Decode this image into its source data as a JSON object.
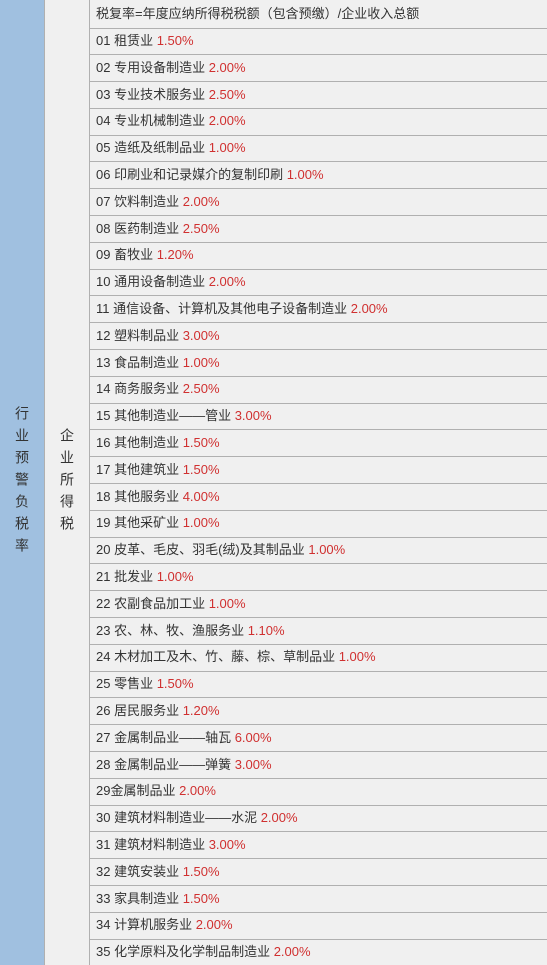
{
  "leftLabel": "行业预警负税率",
  "midLabel": "企业所得税",
  "headerText": "税复率=年度应纳所得税税额（包含预缴）/企业收入总额",
  "textColor": "#333333",
  "rateColor": "#d03030",
  "leftBg": "#a0c0e0",
  "rightBg": "#f0f0f0",
  "borderColor": "#b0b0b0",
  "rows": [
    {
      "num": "01",
      "label": "租赁业",
      "rate": "1.50%"
    },
    {
      "num": "02",
      "label": "专用设备制造业",
      "rate": "2.00%"
    },
    {
      "num": "03",
      "label": "专业技术服务业",
      "rate": "2.50%"
    },
    {
      "num": "04",
      "label": "专业机械制造业",
      "rate": "2.00%"
    },
    {
      "num": "05",
      "label": "造纸及纸制品业",
      "rate": "1.00%"
    },
    {
      "num": "06",
      "label": "印刷业和记录媒介的复制印刷",
      "rate": "1.00%"
    },
    {
      "num": "07",
      "label": "饮料制造业",
      "rate": "2.00%"
    },
    {
      "num": "08",
      "label": "医药制造业",
      "rate": "2.50%"
    },
    {
      "num": "09",
      "label": "畜牧业",
      "rate": "1.20%"
    },
    {
      "num": "10",
      "label": "通用设备制造业",
      "rate": "2.00%"
    },
    {
      "num": "11",
      "label": "通信设备、计算机及其他电子设备制造业",
      "rate": "2.00%"
    },
    {
      "num": "12",
      "label": "塑料制品业",
      "rate": "3.00%"
    },
    {
      "num": "13",
      "label": "食品制造业",
      "rate": "1.00%"
    },
    {
      "num": "14",
      "label": "商务服务业",
      "rate": "2.50%"
    },
    {
      "num": "15",
      "label": "其他制造业——管业",
      "rate": "3.00%"
    },
    {
      "num": "16",
      "label": "其他制造业",
      "rate": "1.50%"
    },
    {
      "num": "17",
      "label": "其他建筑业",
      "rate": "1.50%"
    },
    {
      "num": "18",
      "label": "其他服务业",
      "rate": "4.00%"
    },
    {
      "num": "19",
      "label": "其他采矿业",
      "rate": "1.00%"
    },
    {
      "num": "20",
      "label": "皮革、毛皮、羽毛(绒)及其制品业",
      "rate": "1.00%"
    },
    {
      "num": "21",
      "label": "批发业",
      "rate": "1.00%"
    },
    {
      "num": "22",
      "label": "农副食品加工业",
      "rate": "1.00%"
    },
    {
      "num": "23",
      "label": "农、林、牧、渔服务业",
      "rate": "1.10%"
    },
    {
      "num": "24",
      "label": "木材加工及木、竹、藤、棕、草制品业",
      "rate": "1.00%"
    },
    {
      "num": "25",
      "label": "零售业",
      "rate": "1.50%"
    },
    {
      "num": "26",
      "label": "居民服务业",
      "rate": "1.20%"
    },
    {
      "num": "27",
      "label": "金属制品业——轴瓦",
      "rate": "6.00%"
    },
    {
      "num": "28",
      "label": "金属制品业——弹簧",
      "rate": "3.00%"
    },
    {
      "num": "29",
      "label": "金属制品业",
      "rate": "2.00%",
      "nospace": true
    },
    {
      "num": "30",
      "label": "建筑材料制造业——水泥",
      "rate": "2.00%"
    },
    {
      "num": "31",
      "label": "建筑材料制造业",
      "rate": "3.00%"
    },
    {
      "num": "32",
      "label": "建筑安装业",
      "rate": "1.50%"
    },
    {
      "num": "33",
      "label": "家具制造业",
      "rate": "1.50%"
    },
    {
      "num": "34",
      "label": "计算机服务业",
      "rate": "2.00%"
    },
    {
      "num": "35",
      "label": "化学原料及化学制品制造业",
      "rate": "2.00%"
    }
  ]
}
